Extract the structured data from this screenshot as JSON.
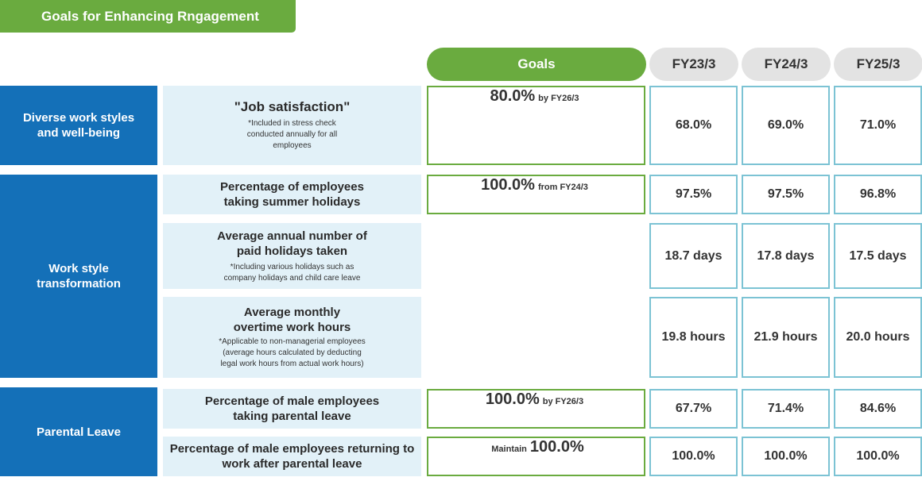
{
  "title": "Goals for Enhancing Rngagement",
  "headers": {
    "goals": "Goals",
    "years": [
      "FY23/3",
      "FY24/3",
      "FY25/3"
    ]
  },
  "categories": [
    "Diverse work styles and well-being",
    "Work style transformation",
    "Parental Leave"
  ],
  "metrics": [
    {
      "label_lines": [
        "\"Job satisfaction\""
      ],
      "note_lines": [
        "*Included in stress check",
        "conducted annually for all",
        "employees"
      ],
      "goal_pre": "",
      "goal_value": "80.0%",
      "goal_suffix": "by FY26/3",
      "values": [
        "68.0%",
        "69.0%",
        "71.0%"
      ]
    },
    {
      "label_lines": [
        "Percentage of employees",
        "taking summer holidays"
      ],
      "note_lines": [],
      "goal_pre": "",
      "goal_value": "100.0%",
      "goal_suffix": "from FY24/3",
      "values": [
        "97.5%",
        "97.5%",
        "96.8%"
      ]
    },
    {
      "label_lines": [
        "Average annual number of",
        "paid holidays taken"
      ],
      "note_lines": [
        "*Including various holidays such as",
        "company holidays and child care leave"
      ],
      "values": [
        "18.7 days",
        "17.8 days",
        "17.5 days"
      ]
    },
    {
      "label_lines": [
        "Average monthly",
        "overtime work hours"
      ],
      "note_lines": [
        "*Applicable to non-managerial employees",
        "(average hours calculated by deducting",
        "legal work hours from actual work hours)"
      ],
      "values": [
        "19.8 hours",
        "21.9 hours",
        "20.0 hours"
      ]
    },
    {
      "label_lines": [
        "Percentage of male employees",
        "taking parental leave"
      ],
      "note_lines": [],
      "goal_pre": "",
      "goal_value": "100.0%",
      "goal_suffix": "by FY26/3",
      "values": [
        "67.7%",
        "71.4%",
        "84.6%"
      ]
    },
    {
      "label_lines": [
        "Percentage of male employees returning to",
        "work after parental leave"
      ],
      "note_lines": [],
      "goal_pre": "Maintain",
      "goal_value": "100.0%",
      "goal_suffix": "",
      "values": [
        "100.0%",
        "100.0%",
        "100.0%"
      ]
    }
  ]
}
